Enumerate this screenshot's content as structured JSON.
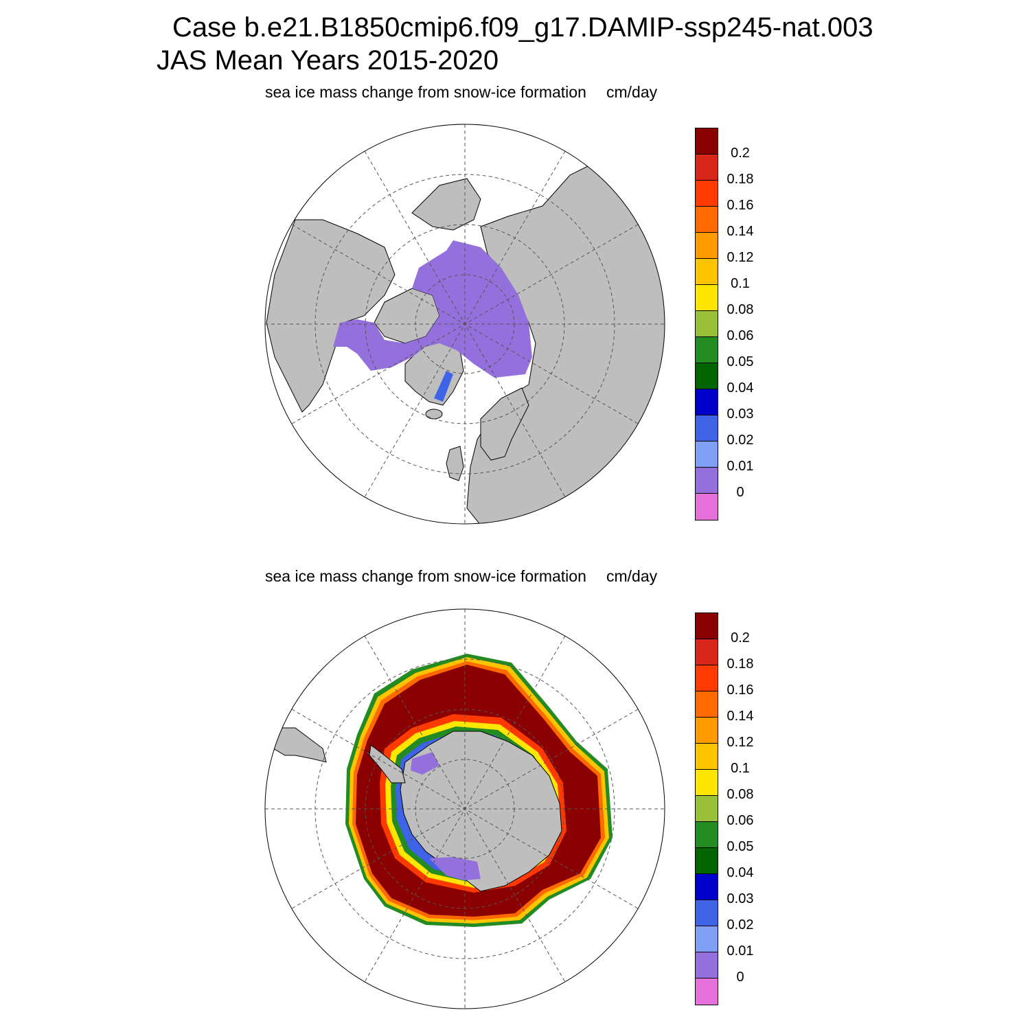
{
  "figure": {
    "title_line1": "Case b.e21.B1850cmip6.f09_g17.DAMIP-ssp245-nat.003",
    "title_line2": "JAS Mean   Years 2015-2020"
  },
  "panels": [
    {
      "hemisphere": "north",
      "title": "sea ice mass change from snow-ice formation",
      "units": "cm/day"
    },
    {
      "hemisphere": "south",
      "title": "sea ice mass change from snow-ice formation",
      "units": "cm/day"
    }
  ],
  "colorbar": {
    "labels": [
      "0.2",
      "0.18",
      "0.16",
      "0.14",
      "0.12",
      "0.1",
      "0.08",
      "0.06",
      "0.05",
      "0.04",
      "0.03",
      "0.02",
      "0.01",
      "0"
    ],
    "colors": [
      "#8b0000",
      "#d8271a",
      "#ff3a00",
      "#ff6a00",
      "#ff9a00",
      "#ffc400",
      "#ffe600",
      "#9ac03a",
      "#228b22",
      "#006400",
      "#0000cd",
      "#3f63e6",
      "#7fa0f6",
      "#9370db",
      "#e670dc"
    ]
  },
  "style": {
    "land": "#bebebe",
    "ocean": "#ffffff",
    "ice_north": "#9370db",
    "grid": "#555555"
  }
}
